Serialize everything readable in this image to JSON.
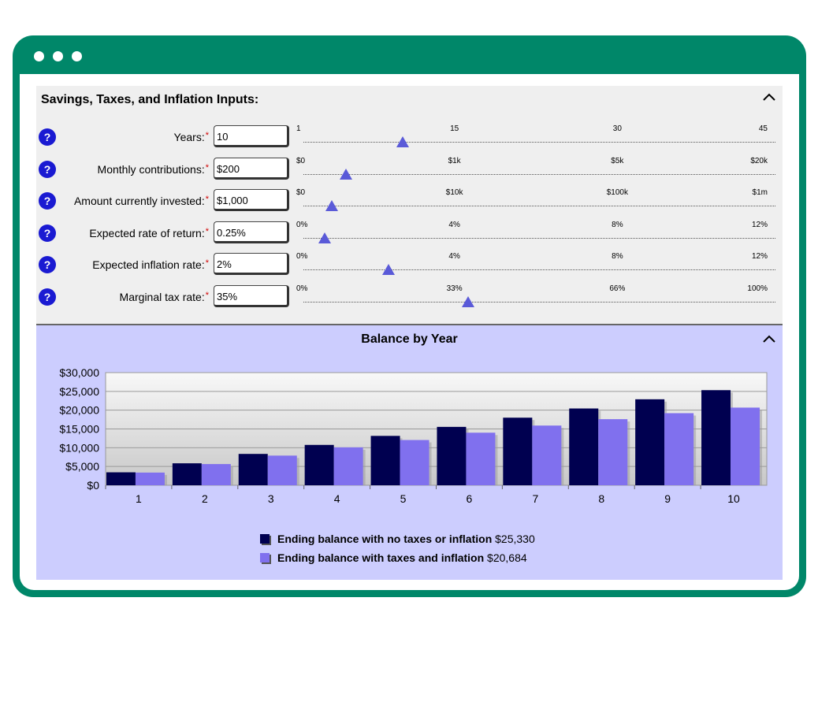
{
  "window": {
    "controls": [
      "dot",
      "dot",
      "dot"
    ]
  },
  "inputs": {
    "title": "Savings, Taxes, and Inflation Inputs:",
    "help_label": "?",
    "required_mark": "*",
    "rows": [
      {
        "label": "Years:",
        "value": "10",
        "ticks": [
          "1",
          "15",
          "30",
          "45"
        ],
        "slider_fraction": 0.21
      },
      {
        "label": "Monthly contributions:",
        "value": "$200",
        "ticks": [
          "$0",
          "$1k",
          "$5k",
          "$20k"
        ],
        "slider_fraction": 0.09
      },
      {
        "label": "Amount currently invested:",
        "value": "$1,000",
        "ticks": [
          "$0",
          "$10k",
          "$100k",
          "$1m"
        ],
        "slider_fraction": 0.06
      },
      {
        "label": "Expected rate of return:",
        "value": "0.25%",
        "ticks": [
          "0%",
          "4%",
          "8%",
          "12%"
        ],
        "slider_fraction": 0.045
      },
      {
        "label": "Expected inflation rate:",
        "value": "2%",
        "ticks": [
          "0%",
          "4%",
          "8%",
          "12%"
        ],
        "slider_fraction": 0.18
      },
      {
        "label": "Marginal tax rate:",
        "value": "35%",
        "ticks": [
          "0%",
          "33%",
          "66%",
          "100%"
        ],
        "slider_fraction": 0.35
      }
    ]
  },
  "chart_panel": {
    "title": "Balance by Year"
  },
  "chart_data": {
    "type": "bar",
    "categories": [
      "1",
      "2",
      "3",
      "4",
      "5",
      "6",
      "7",
      "8",
      "9",
      "10"
    ],
    "ylim": [
      0,
      30000
    ],
    "yticks": [
      "$0",
      "$5,000",
      "$10,000",
      "$15,000",
      "$20,000",
      "$25,000",
      "$30,000"
    ],
    "series": [
      {
        "name": "Ending balance with no taxes or inflation",
        "color": "#000050",
        "values": [
          3450,
          5850,
          8350,
          10750,
          13150,
          15550,
          18000,
          20450,
          22900,
          25330
        ]
      },
      {
        "name": "Ending balance with taxes and inflation",
        "color": "#8070ee",
        "values": [
          3380,
          5650,
          7900,
          10100,
          12050,
          14000,
          15900,
          17600,
          19200,
          20684
        ]
      }
    ],
    "legend": [
      {
        "label": "Ending balance with no taxes or inflation",
        "value": "$25,330"
      },
      {
        "label": "Ending balance with taxes and inflation",
        "value": "$20,684"
      }
    ],
    "legend_position": "bottom"
  }
}
